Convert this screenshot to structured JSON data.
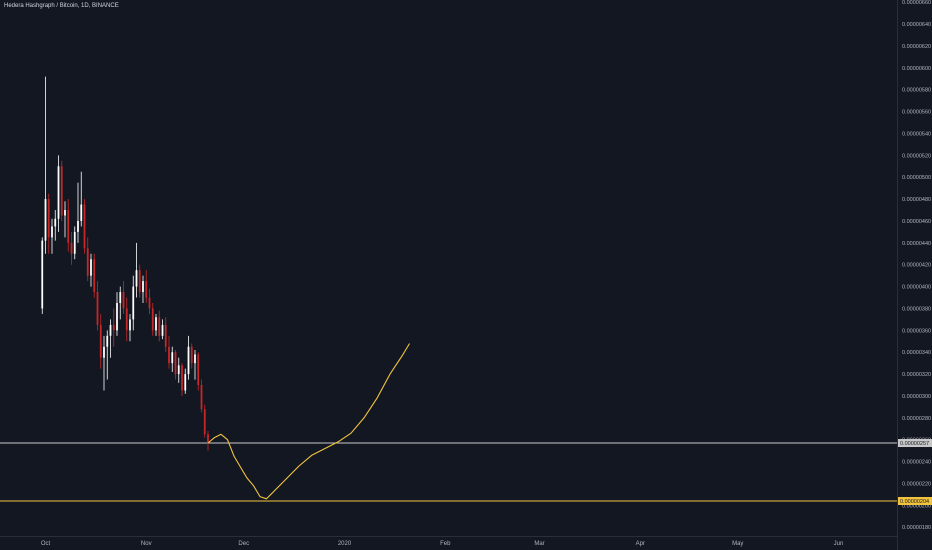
{
  "title": "Hedera Hashgraph / Bitcoin, 1D, BINANCE",
  "chart_data": {
    "type": "candlestick",
    "title": "Hedera Hashgraph / Bitcoin, 1D, BINANCE",
    "y_ticks": [
      "0.00000660",
      "0.00000640",
      "0.00000620",
      "0.00000600",
      "0.00000580",
      "0.00000560",
      "0.00000540",
      "0.00000520",
      "0.00000500",
      "0.00000480",
      "0.00000460",
      "0.00000440",
      "0.00000420",
      "0.00000400",
      "0.00000380",
      "0.00000360",
      "0.00000340",
      "0.00000320",
      "0.00000300",
      "0.00000280",
      "0.00000260",
      "0.00000240",
      "0.00000220",
      "0.00000200",
      "0.00000180"
    ],
    "ylim": [
      1.72e-06,
      6.62e-06
    ],
    "x_labels": [
      {
        "label": "Oct",
        "date": "2019-10-01"
      },
      {
        "label": "Nov",
        "date": "2019-11-01"
      },
      {
        "label": "Dec",
        "date": "2019-12-01"
      },
      {
        "label": "2020",
        "date": "2020-01-01"
      },
      {
        "label": "Feb",
        "date": "2020-02-01"
      },
      {
        "label": "Mar",
        "date": "2020-03-01"
      },
      {
        "label": "Apr",
        "date": "2020-04-01"
      },
      {
        "label": "May",
        "date": "2020-05-01"
      },
      {
        "label": "Jun",
        "date": "2020-06-01"
      }
    ],
    "x_range": [
      "2019-09-17",
      "2020-06-19"
    ],
    "candles": [
      {
        "date": "2019-09-30",
        "o": 3.8e-06,
        "h": 4.45e-06,
        "l": 3.75e-06,
        "c": 4.42e-06
      },
      {
        "date": "2019-10-01",
        "o": 4.42e-06,
        "h": 5.92e-06,
        "l": 4.3e-06,
        "c": 4.8e-06
      },
      {
        "date": "2019-10-02",
        "o": 4.8e-06,
        "h": 4.85e-06,
        "l": 4.3e-06,
        "c": 4.45e-06
      },
      {
        "date": "2019-10-03",
        "o": 4.45e-06,
        "h": 4.62e-06,
        "l": 4.3e-06,
        "c": 4.55e-06
      },
      {
        "date": "2019-10-04",
        "o": 4.55e-06,
        "h": 4.7e-06,
        "l": 4.42e-06,
        "c": 4.62e-06
      },
      {
        "date": "2019-10-05",
        "o": 4.62e-06,
        "h": 5.2e-06,
        "l": 4.5e-06,
        "c": 5.1e-06
      },
      {
        "date": "2019-10-06",
        "o": 5.1e-06,
        "h": 5.15e-06,
        "l": 4.6e-06,
        "c": 4.65e-06
      },
      {
        "date": "2019-10-07",
        "o": 4.65e-06,
        "h": 4.78e-06,
        "l": 4.45e-06,
        "c": 4.7e-06
      },
      {
        "date": "2019-10-08",
        "o": 4.7e-06,
        "h": 4.8e-06,
        "l": 4.32e-06,
        "c": 4.4e-06
      },
      {
        "date": "2019-10-09",
        "o": 4.4e-06,
        "h": 4.5e-06,
        "l": 4.2e-06,
        "c": 4.3e-06
      },
      {
        "date": "2019-10-10",
        "o": 4.3e-06,
        "h": 4.55e-06,
        "l": 4.25e-06,
        "c": 4.5e-06
      },
      {
        "date": "2019-10-11",
        "o": 4.5e-06,
        "h": 4.95e-06,
        "l": 4.4e-06,
        "c": 4.6e-06
      },
      {
        "date": "2019-10-12",
        "o": 4.6e-06,
        "h": 5.05e-06,
        "l": 4.55e-06,
        "c": 4.75e-06
      },
      {
        "date": "2019-10-13",
        "o": 4.75e-06,
        "h": 4.8e-06,
        "l": 4.3e-06,
        "c": 4.35e-06
      },
      {
        "date": "2019-10-14",
        "o": 4.35e-06,
        "h": 4.45e-06,
        "l": 4.05e-06,
        "c": 4.1e-06
      },
      {
        "date": "2019-10-15",
        "o": 4.1e-06,
        "h": 4.3e-06,
        "l": 4e-06,
        "c": 4.25e-06
      },
      {
        "date": "2019-10-16",
        "o": 4.25e-06,
        "h": 4.3e-06,
        "l": 3.9e-06,
        "c": 3.95e-06
      },
      {
        "date": "2019-10-17",
        "o": 3.95e-06,
        "h": 4.05e-06,
        "l": 3.6e-06,
        "c": 3.65e-06
      },
      {
        "date": "2019-10-18",
        "o": 3.65e-06,
        "h": 3.75e-06,
        "l": 3.25e-06,
        "c": 3.35e-06
      },
      {
        "date": "2019-10-19",
        "o": 3.35e-06,
        "h": 3.55e-06,
        "l": 3.05e-06,
        "c": 3.45e-06
      },
      {
        "date": "2019-10-20",
        "o": 3.45e-06,
        "h": 3.6e-06,
        "l": 3.15e-06,
        "c": 3.55e-06
      },
      {
        "date": "2019-10-21",
        "o": 3.55e-06,
        "h": 3.7e-06,
        "l": 3.35e-06,
        "c": 3.65e-06
      },
      {
        "date": "2019-10-22",
        "o": 3.65e-06,
        "h": 3.8e-06,
        "l": 3.45e-06,
        "c": 3.6e-06
      },
      {
        "date": "2019-10-23",
        "o": 3.6e-06,
        "h": 3.95e-06,
        "l": 3.55e-06,
        "c": 3.85e-06
      },
      {
        "date": "2019-10-24",
        "o": 3.85e-06,
        "h": 4e-06,
        "l": 3.7e-06,
        "c": 3.95e-06
      },
      {
        "date": "2019-10-25",
        "o": 3.95e-06,
        "h": 4.05e-06,
        "l": 3.75e-06,
        "c": 3.8e-06
      },
      {
        "date": "2019-10-26",
        "o": 3.8e-06,
        "h": 3.9e-06,
        "l": 3.5e-06,
        "c": 3.6e-06
      },
      {
        "date": "2019-10-27",
        "o": 3.6e-06,
        "h": 3.75e-06,
        "l": 3.5e-06,
        "c": 3.7e-06
      },
      {
        "date": "2019-10-28",
        "o": 3.7e-06,
        "h": 4.1e-06,
        "l": 3.6e-06,
        "c": 4e-06
      },
      {
        "date": "2019-10-29",
        "o": 4e-06,
        "h": 4.4e-06,
        "l": 3.9e-06,
        "c": 4.15e-06
      },
      {
        "date": "2019-10-30",
        "o": 4.15e-06,
        "h": 4.2e-06,
        "l": 3.9e-06,
        "c": 3.95e-06
      },
      {
        "date": "2019-10-31",
        "o": 3.95e-06,
        "h": 4.1e-06,
        "l": 3.85e-06,
        "c": 4.05e-06
      },
      {
        "date": "2019-11-01",
        "o": 4.05e-06,
        "h": 4.15e-06,
        "l": 3.85e-06,
        "c": 3.9e-06
      },
      {
        "date": "2019-11-02",
        "o": 3.9e-06,
        "h": 3.98e-06,
        "l": 3.75e-06,
        "c": 3.8e-06
      },
      {
        "date": "2019-11-03",
        "o": 3.8e-06,
        "h": 3.85e-06,
        "l": 3.55e-06,
        "c": 3.6e-06
      },
      {
        "date": "2019-11-04",
        "o": 3.6e-06,
        "h": 3.75e-06,
        "l": 3.55e-06,
        "c": 3.72e-06
      },
      {
        "date": "2019-11-05",
        "o": 3.72e-06,
        "h": 3.78e-06,
        "l": 3.5e-06,
        "c": 3.55e-06
      },
      {
        "date": "2019-11-06",
        "o": 3.55e-06,
        "h": 3.7e-06,
        "l": 3.52e-06,
        "c": 3.65e-06
      },
      {
        "date": "2019-11-07",
        "o": 3.65e-06,
        "h": 3.72e-06,
        "l": 3.4e-06,
        "c": 3.45e-06
      },
      {
        "date": "2019-11-08",
        "o": 3.45e-06,
        "h": 3.55e-06,
        "l": 3.25e-06,
        "c": 3.3e-06
      },
      {
        "date": "2019-11-09",
        "o": 3.3e-06,
        "h": 3.45e-06,
        "l": 3.22e-06,
        "c": 3.4e-06
      },
      {
        "date": "2019-11-10",
        "o": 3.4e-06,
        "h": 3.42e-06,
        "l": 3.15e-06,
        "c": 3.2e-06
      },
      {
        "date": "2019-11-11",
        "o": 3.2e-06,
        "h": 3.35e-06,
        "l": 3.12e-06,
        "c": 3.28e-06
      },
      {
        "date": "2019-11-12",
        "o": 3.28e-06,
        "h": 3.3e-06,
        "l": 3e-06,
        "c": 3.05e-06
      },
      {
        "date": "2019-11-13",
        "o": 3.05e-06,
        "h": 3.25e-06,
        "l": 3.02e-06,
        "c": 3.2e-06
      },
      {
        "date": "2019-11-14",
        "o": 3.2e-06,
        "h": 3.55e-06,
        "l": 3.15e-06,
        "c": 3.45e-06
      },
      {
        "date": "2019-11-15",
        "o": 3.45e-06,
        "h": 3.48e-06,
        "l": 3.25e-06,
        "c": 3.3e-06
      },
      {
        "date": "2019-11-16",
        "o": 3.3e-06,
        "h": 3.42e-06,
        "l": 3.15e-06,
        "c": 3.38e-06
      },
      {
        "date": "2019-11-17",
        "o": 3.38e-06,
        "h": 3.4e-06,
        "l": 3.05e-06,
        "c": 3.1e-06
      },
      {
        "date": "2019-11-18",
        "o": 3.1e-06,
        "h": 3.15e-06,
        "l": 2.85e-06,
        "c": 2.88e-06
      },
      {
        "date": "2019-11-19",
        "o": 2.88e-06,
        "h": 2.92e-06,
        "l": 2.62e-06,
        "c": 2.65e-06
      },
      {
        "date": "2019-11-20",
        "o": 2.65e-06,
        "h": 2.68e-06,
        "l": 2.5e-06,
        "c": 2.57e-06
      }
    ],
    "projection": [
      [
        "2019-11-20",
        2.57e-06
      ],
      [
        "2019-11-22",
        2.62e-06
      ],
      [
        "2019-11-24",
        2.65e-06
      ],
      [
        "2019-11-26",
        2.6e-06
      ],
      [
        "2019-11-28",
        2.45e-06
      ],
      [
        "2019-11-30",
        2.35e-06
      ],
      [
        "2019-12-02",
        2.25e-06
      ],
      [
        "2019-12-04",
        2.18e-06
      ],
      [
        "2019-12-06",
        2.08e-06
      ],
      [
        "2019-12-08",
        2.06e-06
      ],
      [
        "2019-12-10",
        2.12e-06
      ],
      [
        "2019-12-14",
        2.24e-06
      ],
      [
        "2019-12-18",
        2.36e-06
      ],
      [
        "2019-12-22",
        2.46e-06
      ],
      [
        "2019-12-26",
        2.52e-06
      ],
      [
        "2019-12-30",
        2.58e-06
      ],
      [
        "2020-01-03",
        2.66e-06
      ],
      [
        "2020-01-07",
        2.8e-06
      ],
      [
        "2020-01-11",
        2.98e-06
      ],
      [
        "2020-01-15",
        3.2e-06
      ],
      [
        "2020-01-19",
        3.38e-06
      ],
      [
        "2020-01-21",
        3.48e-06
      ]
    ],
    "horizontal_lines": [
      {
        "value": "0.00000257",
        "y": 2.57e-06,
        "color": "#c8c8c8"
      },
      {
        "value": "0.00000204",
        "y": 2.04e-06,
        "color": "#f2c43d"
      }
    ],
    "colors": {
      "background": "#131722",
      "up": "#ffffff",
      "down": "#c62828",
      "projection": "#f2c43d",
      "axis_text": "#b2b5be"
    },
    "grid": false
  }
}
